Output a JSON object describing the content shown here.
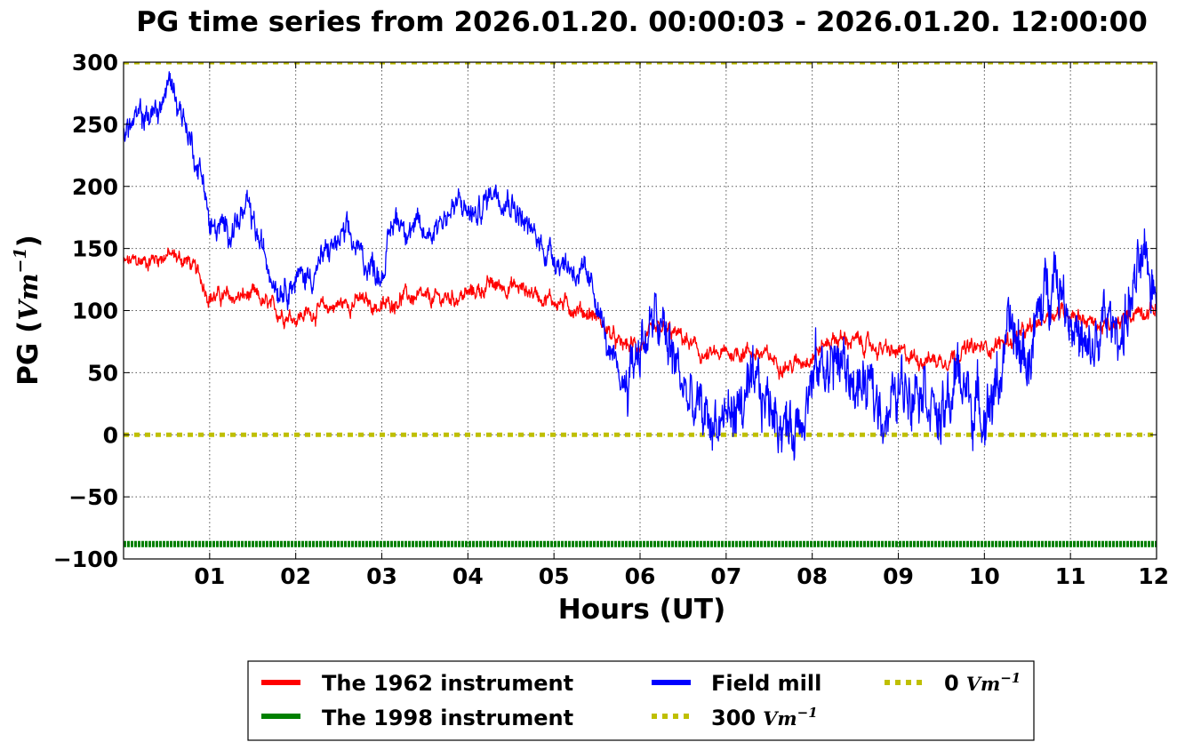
{
  "chart_data": {
    "type": "line",
    "title": "PG time series from 2026.01.20. 00:00:03 - 2026.01.20. 12:00:00",
    "xlabel": "Hours (UT)",
    "ylabel_prefix": "PG (",
    "ylabel_unit_base": "Vm",
    "ylabel_unit_exp": "−1",
    "ylabel_suffix": ")",
    "xlim": [
      0,
      12
    ],
    "ylim": [
      -100,
      300
    ],
    "grid": true,
    "legend_position": "bottom-center",
    "x_ticks": [
      {
        "value": 1,
        "label": "01"
      },
      {
        "value": 2,
        "label": "02"
      },
      {
        "value": 3,
        "label": "03"
      },
      {
        "value": 4,
        "label": "04"
      },
      {
        "value": 5,
        "label": "05"
      },
      {
        "value": 6,
        "label": "06"
      },
      {
        "value": 7,
        "label": "07"
      },
      {
        "value": 8,
        "label": "08"
      },
      {
        "value": 9,
        "label": "09"
      },
      {
        "value": 10,
        "label": "10"
      },
      {
        "value": 11,
        "label": "11"
      },
      {
        "value": 12,
        "label": "12"
      }
    ],
    "y_ticks": [
      {
        "value": 300,
        "label": "300"
      },
      {
        "value": 250,
        "label": "250"
      },
      {
        "value": 200,
        "label": "200"
      },
      {
        "value": 150,
        "label": "150"
      },
      {
        "value": 100,
        "label": "100"
      },
      {
        "value": 50,
        "label": "50"
      },
      {
        "value": 0,
        "label": "0"
      },
      {
        "value": -50,
        "label": "−50"
      },
      {
        "value": -100,
        "label": "−100"
      }
    ],
    "series": [
      {
        "name": "The 1962 instrument",
        "color": "#ff0000",
        "noise": 6,
        "x": [
          0,
          0.25,
          0.5,
          0.75,
          0.9,
          1.0,
          1.25,
          1.5,
          1.75,
          2.0,
          2.25,
          2.5,
          2.75,
          3.0,
          3.25,
          3.5,
          3.75,
          4.0,
          4.25,
          4.5,
          4.75,
          5.0,
          5.25,
          5.5,
          5.75,
          6.0,
          6.25,
          6.5,
          6.75,
          7.0,
          7.25,
          7.5,
          7.75,
          8.0,
          8.25,
          8.5,
          8.75,
          9.0,
          9.25,
          9.5,
          9.75,
          10.0,
          10.25,
          10.5,
          10.75,
          11.0,
          11.25,
          11.5,
          11.75,
          12.0
        ],
        "y": [
          138,
          140,
          145,
          140,
          125,
          112,
          110,
          112,
          100,
          95,
          100,
          105,
          108,
          102,
          112,
          108,
          110,
          113,
          120,
          120,
          115,
          108,
          102,
          95,
          72,
          72,
          85,
          78,
          62,
          65,
          68,
          62,
          55,
          65,
          78,
          75,
          70,
          65,
          62,
          60,
          68,
          70,
          75,
          82,
          98,
          100,
          90,
          85,
          100,
          102
        ]
      },
      {
        "name": "Field mill",
        "color": "#0000ff",
        "noise": 10,
        "x": [
          0,
          0.2,
          0.4,
          0.55,
          0.7,
          0.85,
          0.95,
          1.0,
          1.2,
          1.45,
          1.6,
          1.8,
          2.0,
          2.2,
          2.4,
          2.6,
          2.8,
          3.0,
          3.15,
          3.3,
          3.5,
          3.7,
          3.9,
          4.1,
          4.3,
          4.5,
          4.7,
          4.9,
          5.1,
          5.3,
          5.5,
          5.65,
          5.8,
          6.0,
          6.2,
          6.4,
          6.6,
          6.8,
          7.0,
          7.2,
          7.4,
          7.6,
          7.75,
          7.9,
          8.1,
          8.3,
          8.5,
          8.7,
          8.9,
          9.1,
          9.3,
          9.5,
          9.7,
          9.9,
          10.1,
          10.3,
          10.5,
          10.7,
          10.8,
          11.0,
          11.2,
          11.4,
          11.6,
          11.8,
          12.0
        ],
        "y": [
          245,
          255,
          260,
          285,
          255,
          220,
          200,
          165,
          165,
          180,
          150,
          120,
          125,
          130,
          150,
          160,
          140,
          130,
          175,
          170,
          160,
          175,
          185,
          175,
          200,
          190,
          165,
          150,
          140,
          130,
          110,
          60,
          40,
          75,
          90,
          60,
          20,
          10,
          15,
          25,
          30,
          20,
          0,
          30,
          55,
          60,
          40,
          30,
          20,
          45,
          50,
          5,
          50,
          20,
          30,
          80,
          60,
          110,
          140,
          100,
          55,
          90,
          85,
          130,
          120
        ]
      },
      {
        "name": "The 1998 instrument",
        "color": "#008000",
        "constant": -88
      },
      {
        "name": "300 Vm⁻¹",
        "color": "#bfbf00",
        "constant": 300
      },
      {
        "name": "0 Vm⁻¹",
        "color": "#bfbf00",
        "constant": 0
      }
    ]
  },
  "legend": {
    "items": [
      {
        "label": "The 1962 instrument",
        "color": "#ff0000",
        "style": "solid"
      },
      {
        "label": "The 1998 instrument",
        "color": "#008000",
        "style": "solid"
      },
      {
        "label": "Field mill",
        "color": "#0000ff",
        "style": "solid"
      },
      {
        "label": "300",
        "math_base": "Vm",
        "math_exp": "−1",
        "color": "#bfbf00",
        "style": "dotted"
      },
      {
        "label": "0",
        "math_base": "Vm",
        "math_exp": "−1",
        "color": "#bfbf00",
        "style": "dotted"
      }
    ]
  }
}
